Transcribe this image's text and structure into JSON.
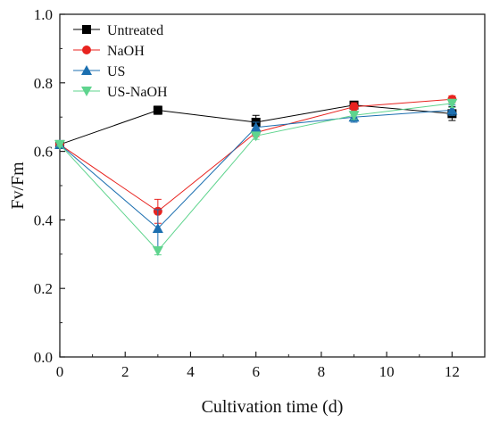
{
  "chart_data": {
    "type": "line",
    "xlabel": "Cultivation time (d)",
    "ylabel": "Fv/Fm",
    "xlim": [
      0,
      13
    ],
    "ylim": [
      0.0,
      1.0
    ],
    "xticks": [
      0,
      2,
      4,
      6,
      8,
      10,
      12
    ],
    "xtick_labels": [
      "0",
      "2",
      "4",
      "6",
      "8",
      "10",
      "12"
    ],
    "yticks": [
      0.0,
      0.2,
      0.4,
      0.6,
      0.8,
      1.0
    ],
    "ytick_labels": [
      "0.0",
      "0.2",
      "0.4",
      "0.6",
      "0.8",
      "1.0"
    ],
    "grid": false,
    "legend_position": "top-left",
    "x": [
      0,
      3,
      6,
      9,
      12
    ],
    "series": [
      {
        "name": "Untreated",
        "color": "#000000",
        "marker": "square",
        "values": [
          0.62,
          0.72,
          0.685,
          0.735,
          0.71
        ],
        "errors": [
          0.005,
          0.012,
          0.02,
          0.01,
          0.02
        ]
      },
      {
        "name": "NaOH",
        "color": "#e8231f",
        "marker": "circle",
        "values": [
          0.62,
          0.425,
          0.655,
          0.73,
          0.752
        ],
        "errors": [
          0.005,
          0.035,
          0.012,
          0.012,
          0.01
        ]
      },
      {
        "name": "US",
        "color": "#1c6fb0",
        "marker": "triangle-up",
        "values": [
          0.62,
          0.375,
          0.67,
          0.7,
          0.72
        ],
        "errors": [
          0.005,
          0.055,
          0.015,
          0.015,
          0.015
        ]
      },
      {
        "name": "US-NaOH",
        "color": "#5fd48e",
        "marker": "triangle-down",
        "values": [
          0.62,
          0.31,
          0.645,
          0.705,
          0.74
        ],
        "errors": [
          0.005,
          0.012,
          0.01,
          0.012,
          0.012
        ]
      }
    ]
  }
}
